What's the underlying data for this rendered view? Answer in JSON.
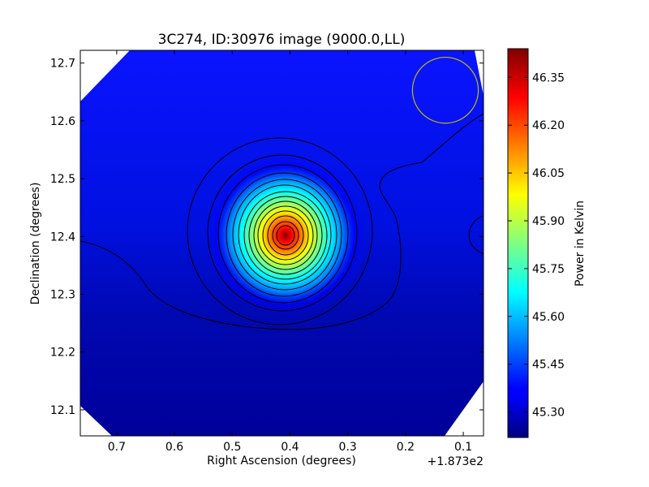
{
  "chart_data": {
    "type": "heatmap",
    "title": "3C274, ID:30976 image (9000.0,LL)",
    "xlabel": "Right Ascension (degrees)",
    "ylabel": "Declination (degrees)",
    "x_offset_label": "+1.873e2",
    "x_ticks": [
      0.7,
      0.6,
      0.5,
      0.4,
      0.3,
      0.2,
      0.1
    ],
    "x_tick_labels": [
      "0.7",
      "0.6",
      "0.5",
      "0.4",
      "0.3",
      "0.2",
      "0.1"
    ],
    "y_ticks": [
      12.1,
      12.2,
      12.3,
      12.4,
      12.5,
      12.6,
      12.7
    ],
    "y_tick_labels": [
      "12.1",
      "12.2",
      "12.3",
      "12.4",
      "12.5",
      "12.6",
      "12.7"
    ],
    "xlim": [
      0.763,
      0.065
    ],
    "ylim": [
      12.055,
      12.722
    ],
    "peak": {
      "x": 0.403,
      "y": 12.401
    },
    "beam_circle": {
      "x": 0.131,
      "y": 12.653,
      "radius": 0.057
    },
    "colorbar": {
      "label": "Power in Kelvin",
      "range": [
        45.22,
        46.44
      ],
      "ticks": [
        45.3,
        45.45,
        45.6,
        45.75,
        45.9,
        46.05,
        46.2,
        46.35
      ],
      "tick_labels": [
        "45.30",
        "45.45",
        "45.60",
        "45.75",
        "45.90",
        "46.05",
        "46.20",
        "46.35"
      ]
    },
    "grid": false,
    "colors": {
      "contour": "#000000",
      "beam_circle": "#bfbf00",
      "colormap": "jet"
    }
  }
}
